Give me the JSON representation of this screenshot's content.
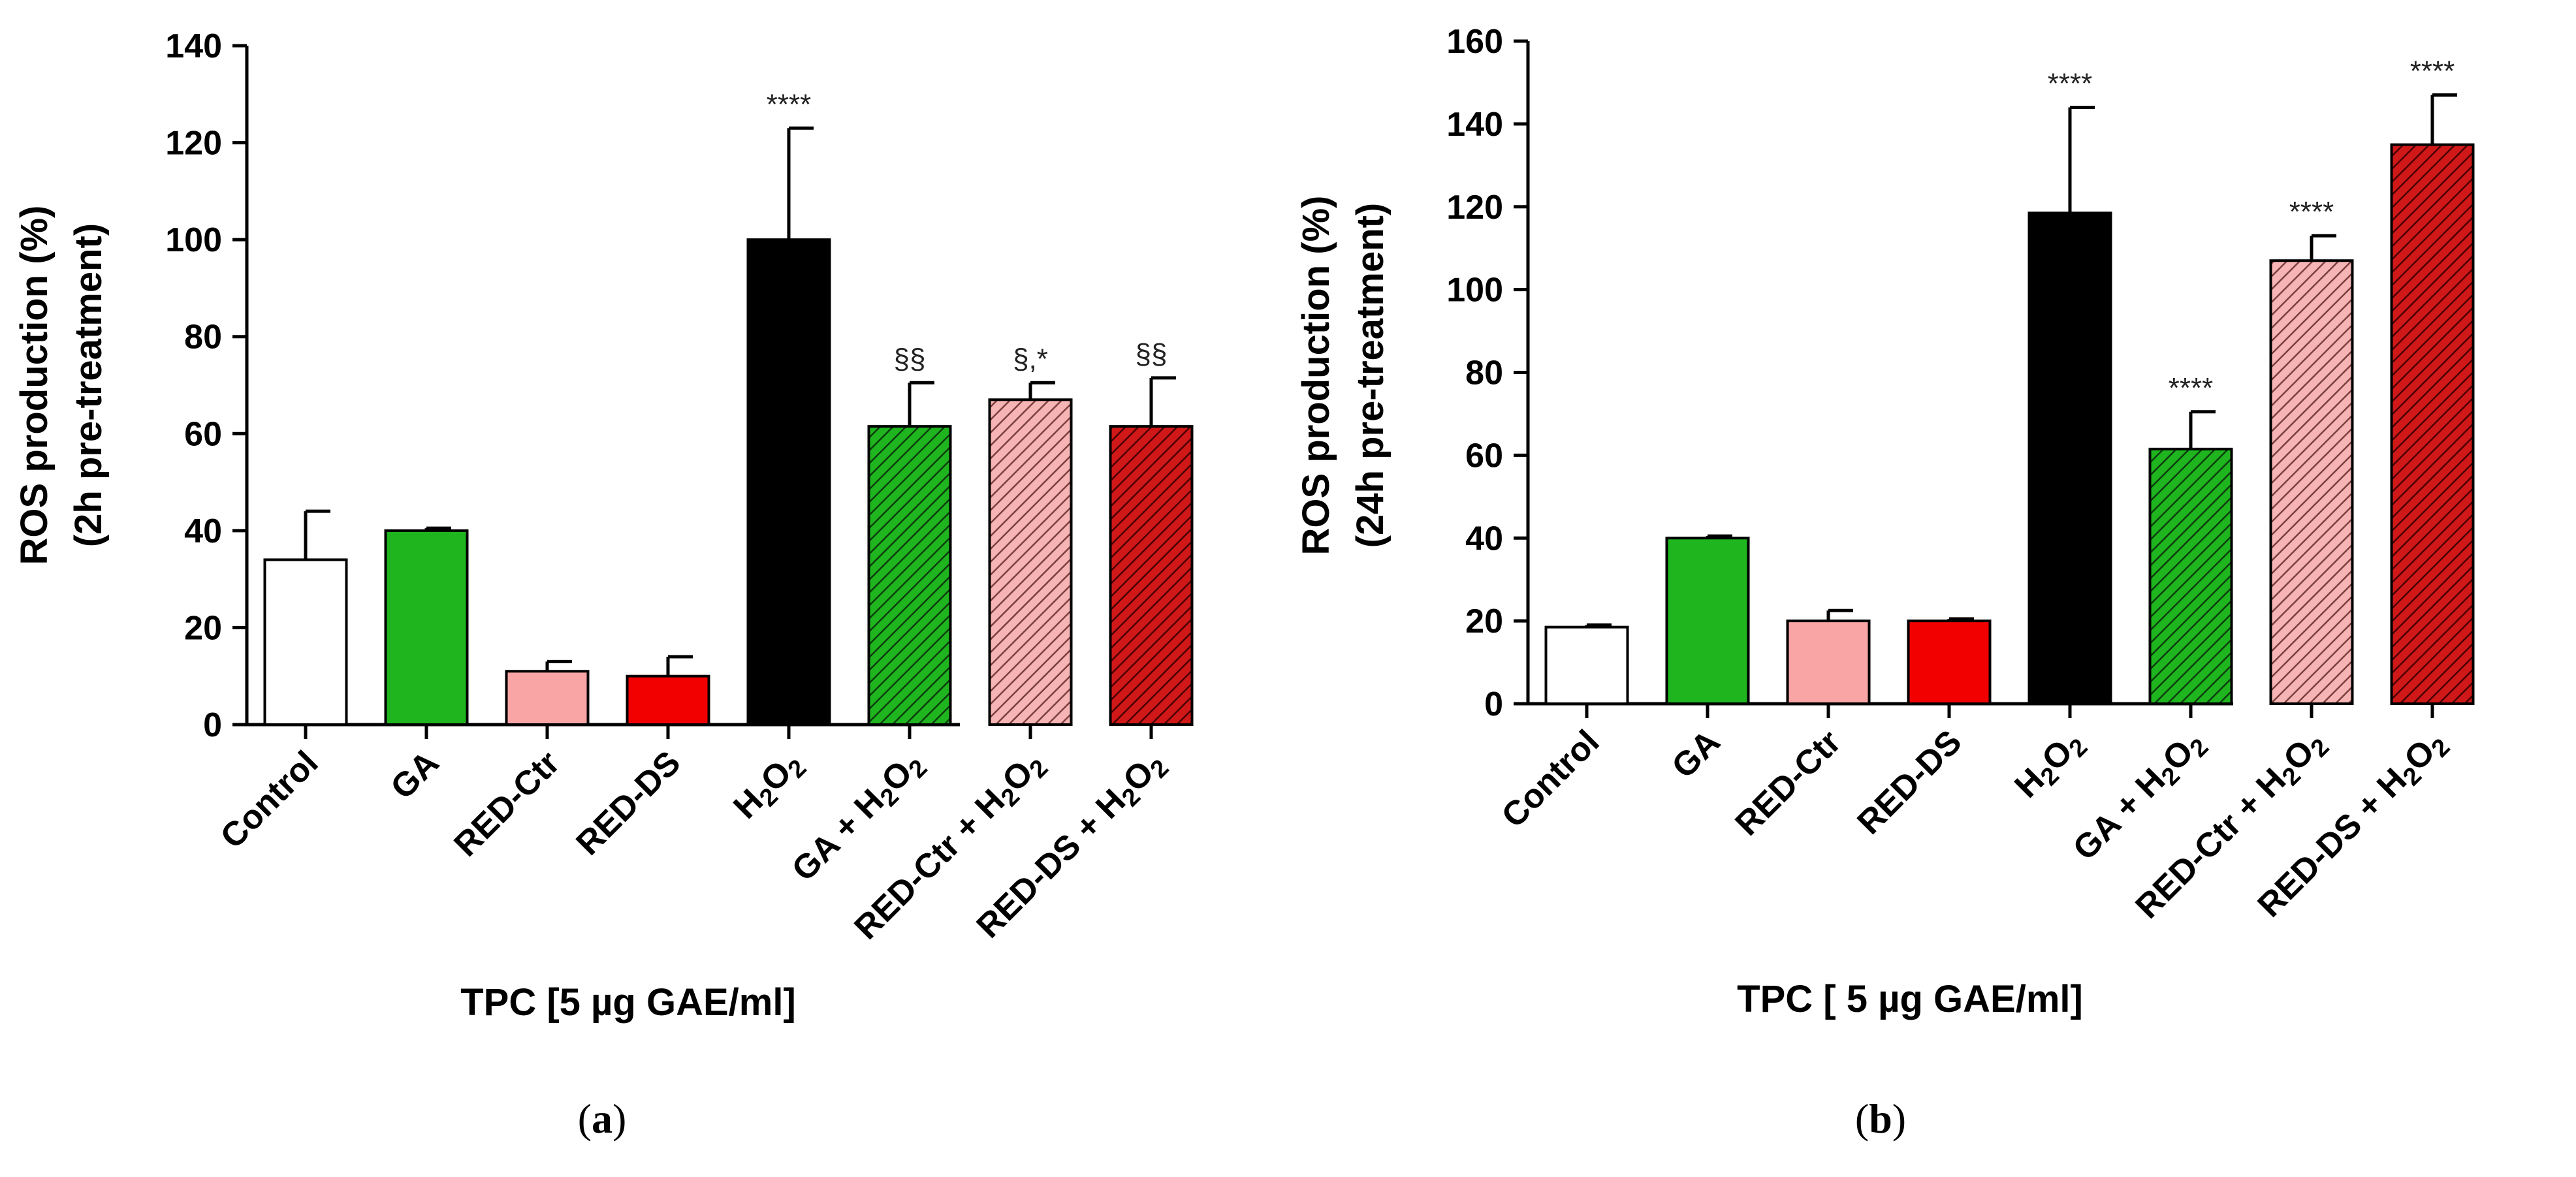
{
  "chart_data": [
    {
      "type": "bar",
      "panel_label_prefix": "(",
      "panel_label": "a",
      "panel_label_suffix": ")",
      "ylabel_line1": "ROS production  (%)",
      "ylabel_line2": "(2h pre-treatment)",
      "xlabel": "TPC [5 µg GAE/ml]",
      "ylim": [
        0,
        140
      ],
      "yticks": [
        0,
        20,
        40,
        60,
        80,
        100,
        120,
        140
      ],
      "categories": [
        "Control",
        "GA",
        "RED-Ctr",
        "RED-DS",
        "H2O2",
        "GA + H2O2",
        "RED-Ctr + H2O2",
        "RED-DS + H2O2"
      ],
      "values": [
        34,
        40,
        11,
        10,
        100,
        61.5,
        67,
        61.5
      ],
      "errors": [
        10,
        0.5,
        2,
        4,
        23,
        9,
        3.5,
        10
      ],
      "annotations": [
        "",
        "",
        "",
        "",
        "****",
        "§§",
        "§,*",
        "§§"
      ],
      "colors": [
        "#ffffff",
        "#1fb51f",
        "#f9a5a5",
        "#f20000",
        "#000000",
        "#1fb51f",
        "#f7b4b4",
        "#d01818"
      ],
      "hatched": [
        false,
        false,
        false,
        false,
        false,
        true,
        true,
        true
      ]
    },
    {
      "type": "bar",
      "panel_label_prefix": "(",
      "panel_label": "b",
      "panel_label_suffix": ")",
      "ylabel_line1": "ROS production  (%)",
      "ylabel_line2": "(24h pre-treatment)",
      "xlabel": "TPC [ 5 µg GAE/ml]",
      "ylim": [
        0,
        160
      ],
      "yticks": [
        0,
        20,
        40,
        60,
        80,
        100,
        120,
        140,
        160
      ],
      "categories": [
        "Control",
        "GA",
        "RED-Ctr",
        "RED-DS",
        "H2O2",
        "GA + H2O2",
        "RED-Ctr + H2O2",
        "RED-DS + H2O2"
      ],
      "values": [
        18.5,
        40,
        20,
        20,
        118.5,
        61.5,
        107,
        135
      ],
      "errors": [
        0.5,
        0.5,
        2.5,
        0.5,
        25.5,
        9,
        6,
        12
      ],
      "annotations": [
        "",
        "",
        "",
        "",
        "****",
        "****",
        "****",
        "****"
      ],
      "colors": [
        "#ffffff",
        "#1fb51f",
        "#f9a5a5",
        "#f20000",
        "#000000",
        "#1fb51f",
        "#f7b4b4",
        "#d01818"
      ],
      "hatched": [
        false,
        false,
        false,
        false,
        false,
        true,
        true,
        true
      ]
    }
  ]
}
